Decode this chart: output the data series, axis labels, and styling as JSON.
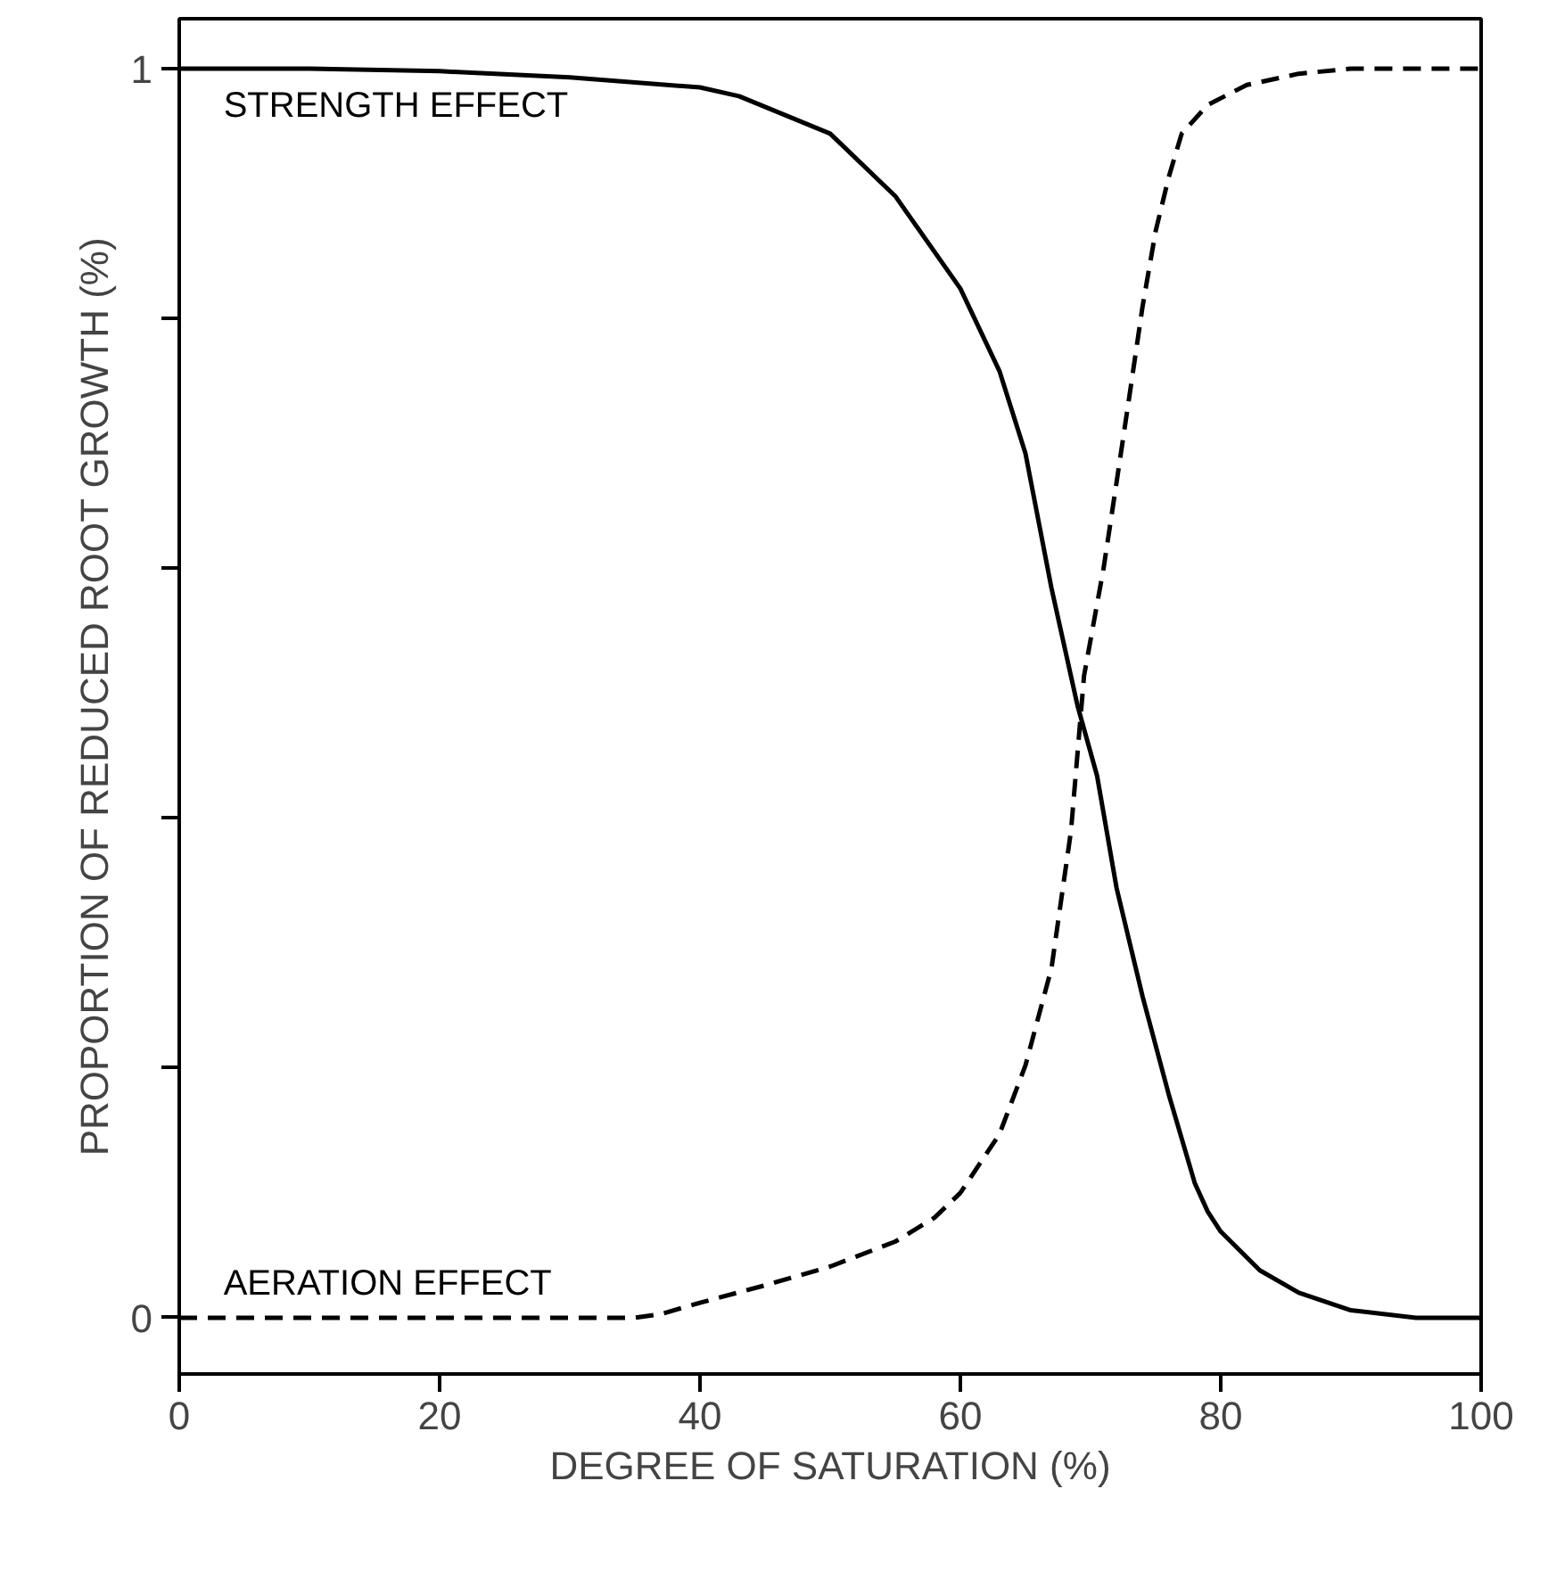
{
  "chart_data": {
    "type": "line",
    "xlabel": "DEGREE OF SATURATION (%)",
    "ylabel": "PROPORTION OF REDUCED ROOT GROWTH (%)",
    "xlim": [
      0,
      100
    ],
    "ylim": [
      -0.045,
      1.04
    ],
    "xticks": [
      0,
      20,
      40,
      60,
      80,
      100
    ],
    "yticks": [
      0,
      {
        "value": 0.2,
        "label": null
      },
      {
        "value": 0.4,
        "label": null
      },
      {
        "value": 0.6,
        "label": null
      },
      {
        "value": 0.8,
        "label": null
      },
      1
    ],
    "grid": false,
    "legend": false,
    "marker": "none",
    "series": [
      {
        "name": "STRENGTH EFFECT",
        "color": "#000000",
        "line_style": "solid",
        "x": [
          0,
          10,
          20,
          30,
          40,
          43,
          50,
          55,
          60,
          63,
          65,
          67,
          69,
          70.5,
          72,
          74,
          76,
          78,
          79,
          80,
          83,
          86,
          90,
          95,
          100
        ],
        "values": [
          1,
          1,
          0.998,
          0.993,
          0.985,
          0.978,
          0.948,
          0.898,
          0.824,
          0.758,
          0.692,
          0.584,
          0.49,
          0.434,
          0.344,
          0.257,
          0.179,
          0.108,
          0.085,
          0.069,
          0.038,
          0.02,
          0.006,
          0,
          0
        ]
      },
      {
        "name": "AERATION EFFECT",
        "color": "#000000",
        "line_style": "dashed",
        "x": [
          0,
          10,
          20,
          30,
          35,
          37,
          40,
          45,
          50,
          55,
          58,
          60,
          63,
          65,
          67,
          68.5,
          69.5,
          71,
          72,
          73,
          74,
          75,
          76,
          77,
          79,
          82,
          86,
          90,
          100
        ],
        "values": [
          0,
          0,
          0,
          0,
          0,
          0.003,
          0.012,
          0.026,
          0.041,
          0.061,
          0.08,
          0.1,
          0.147,
          0.202,
          0.28,
          0.39,
          0.514,
          0.6,
          0.669,
          0.739,
          0.81,
          0.87,
          0.913,
          0.948,
          0.971,
          0.987,
          0.996,
          1,
          1
        ]
      }
    ]
  }
}
